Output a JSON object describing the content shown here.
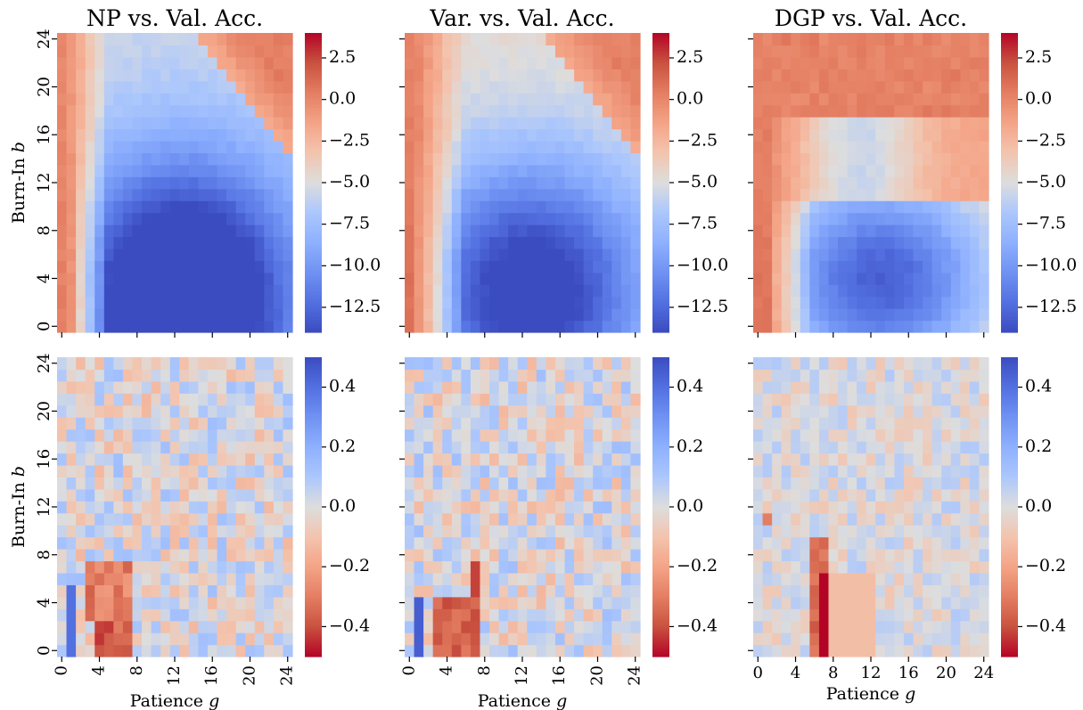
{
  "chart_data": {
    "type": "heatmap",
    "layout": {
      "rows": 2,
      "cols": 3,
      "shared_x": true,
      "shared_y": true
    },
    "grid": {
      "x_values": [
        0,
        1,
        2,
        3,
        4,
        5,
        6,
        7,
        8,
        9,
        10,
        11,
        12,
        13,
        14,
        15,
        16,
        17,
        18,
        19,
        20,
        21,
        22,
        23,
        24
      ],
      "y_values": [
        0,
        1,
        2,
        3,
        4,
        5,
        6,
        7,
        8,
        9,
        10,
        11,
        12,
        13,
        14,
        15,
        16,
        17,
        18,
        19,
        20,
        21,
        22,
        23,
        24
      ],
      "x_ticks": [
        0,
        4,
        8,
        12,
        16,
        20,
        24
      ],
      "y_ticks": [
        0,
        4,
        8,
        12,
        16,
        20,
        24
      ],
      "xlabel": "Patience g",
      "ylabel": "Burn-In b"
    },
    "rows": [
      {
        "colormap": "coolwarm",
        "colormap_reversed": false,
        "vmin": -14,
        "vmax": 4,
        "colorbar_ticks": [
          2.5,
          0.0,
          -2.5,
          -5.0,
          -7.5,
          -10.0,
          -12.5
        ],
        "colorbar_tick_labels": [
          "2.5",
          "0.0",
          "−2.5",
          "−5.0",
          "−7.5",
          "−10.0",
          "−12.5"
        ],
        "panels": [
          {
            "title": "NP vs. Val. Acc.",
            "pattern": "np",
            "summary": {
              "min_approx": -13.5,
              "max_approx": 0.5,
              "min_location": {
                "g": 13,
                "b": 2
              },
              "near_zero_region": "top-right corner and left edge"
            }
          },
          {
            "title": "Var. vs. Val. Acc.",
            "pattern": "var",
            "summary": {
              "min_approx": -11.0,
              "max_approx": 1.0,
              "min_location": {
                "g": 13,
                "b": 3
              },
              "near_zero_region": "top-right corner and left edge"
            }
          },
          {
            "title": "DGP vs. Val. Acc.",
            "pattern": "dgp",
            "summary": {
              "min_approx": -11.5,
              "max_approx": 1.5,
              "min_location": {
                "g": 13,
                "b": 4
              },
              "near_zero_region": "top half and left edge"
            }
          }
        ]
      },
      {
        "colormap": "coolwarm",
        "colormap_reversed": true,
        "vmin": -0.5,
        "vmax": 0.5,
        "colorbar_ticks": [
          0.4,
          0.2,
          0.0,
          -0.2,
          -0.4
        ],
        "colorbar_tick_labels": [
          "0.4",
          "0.2",
          "0.0",
          "−0.2",
          "−0.4"
        ],
        "panels": [
          {
            "pattern": "np_diff",
            "summary": {
              "min_approx": -0.5,
              "max_approx": 0.4
            }
          },
          {
            "pattern": "var_diff",
            "summary": {
              "min_approx": -0.4,
              "max_approx": 0.45
            }
          },
          {
            "pattern": "dgp_diff",
            "summary": {
              "min_approx": -0.5,
              "max_approx": 0.1
            }
          }
        ]
      }
    ]
  }
}
